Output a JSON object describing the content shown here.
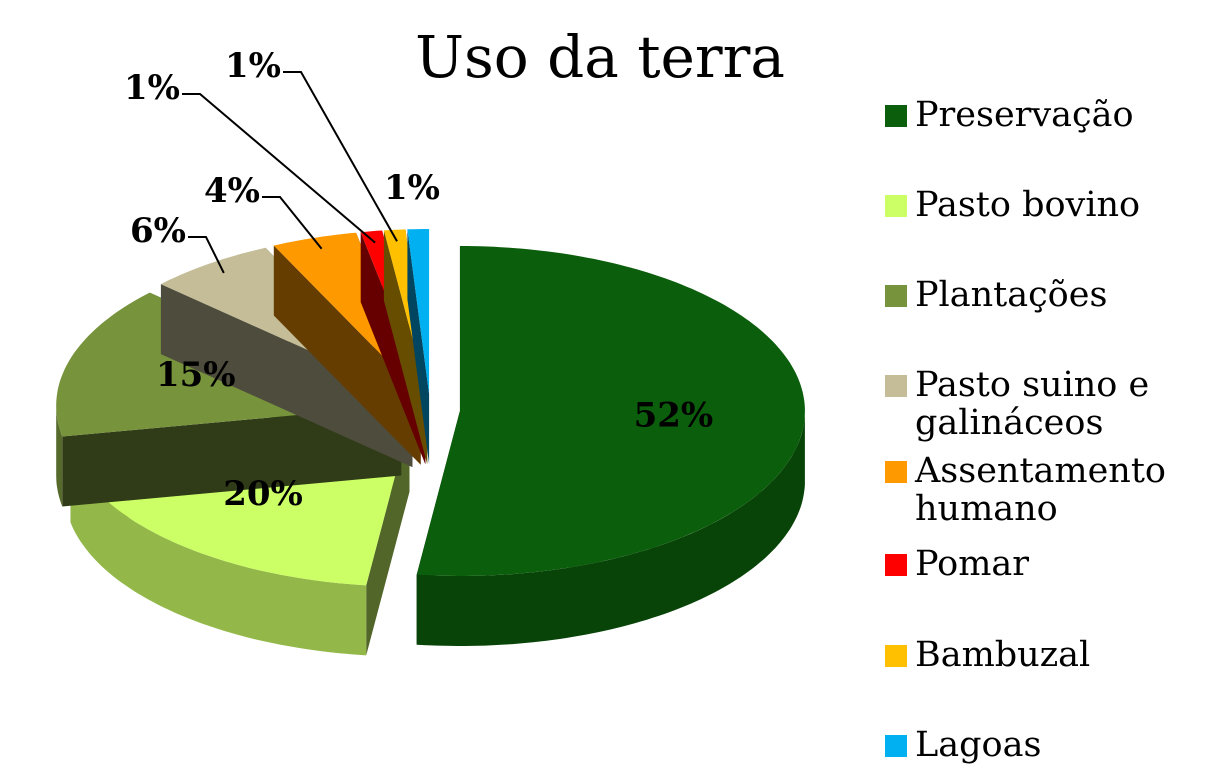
{
  "chart_data": {
    "type": "pie",
    "title": "Uso da terra",
    "categories": [
      "Preservação",
      "Pasto bovino",
      "Plantações",
      "Pasto suino e galináceos",
      "Assentamento humano",
      "Pomar",
      "Bambuzal",
      "Lagoas"
    ],
    "values": [
      52,
      20,
      15,
      6,
      4,
      1,
      1,
      1
    ],
    "value_labels": [
      "52%",
      "20%",
      "15%",
      "6%",
      "4%",
      "1%",
      "1%",
      "1%"
    ],
    "colors": [
      "#0b5e0b",
      "#ccff66",
      "#77933c",
      "#c4bd97",
      "#ff9900",
      "#ff0000",
      "#ffc000",
      "#00b0f0"
    ],
    "legend": "right"
  }
}
